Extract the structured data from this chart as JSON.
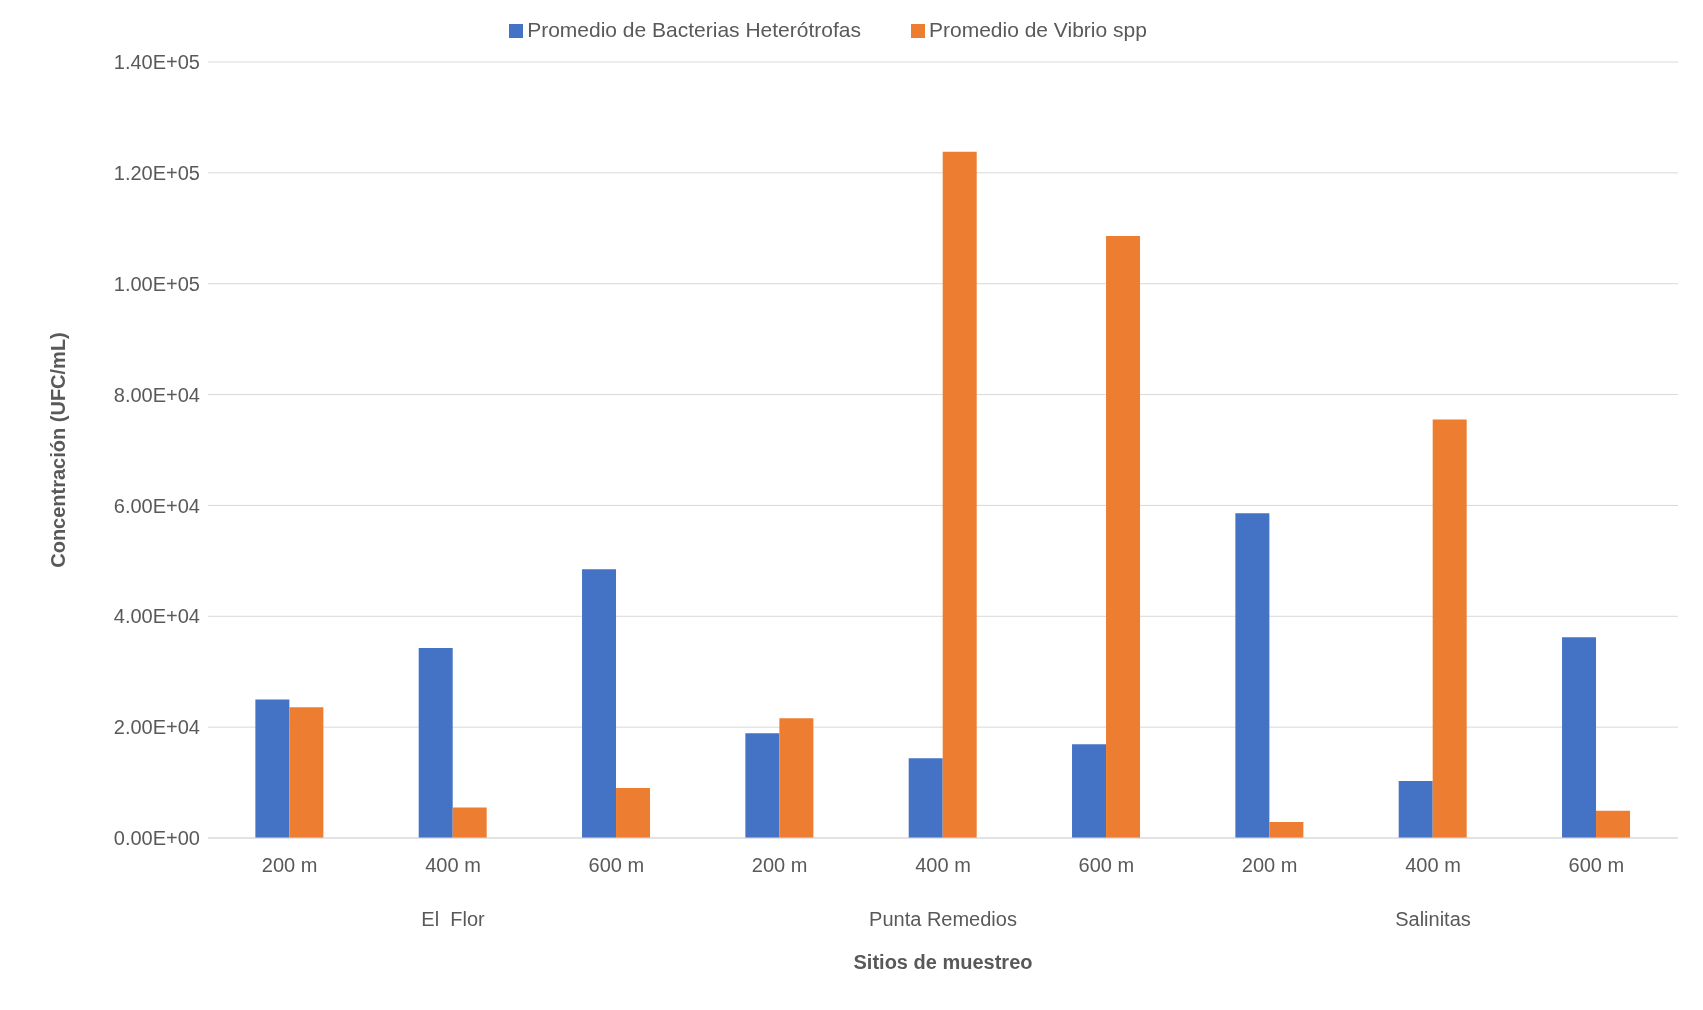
{
  "chart_data": {
    "type": "bar",
    "xlabel": "Sitios de muestreo",
    "ylabel": "Concentración (UFC/mL)",
    "categories": [
      "200 m",
      "400 m",
      "600 m",
      "200 m",
      "400 m",
      "600 m",
      "200 m",
      "400 m",
      "600 m"
    ],
    "series": [
      {
        "name": "Promedio de Bacterias Heterótrofas",
        "color": "#4472c4",
        "values": [
          25000,
          34300,
          48500,
          18900,
          14400,
          16900,
          58600,
          10300,
          36200
        ]
      },
      {
        "name": "Promedio de Vibrio spp",
        "color": "#ed7d31",
        "values": [
          23600,
          5500,
          9000,
          21600,
          123800,
          108600,
          2900,
          75500,
          4900
        ]
      }
    ],
    "ylim": [
      0,
      140000
    ],
    "yticks": [
      {
        "value": 0,
        "label": "0.00E+00"
      },
      {
        "value": 20000,
        "label": "2.00E+04"
      },
      {
        "value": 40000,
        "label": "4.00E+04"
      },
      {
        "value": 60000,
        "label": "6.00E+04"
      },
      {
        "value": 80000,
        "label": "8.00E+04"
      },
      {
        "value": 100000,
        "label": "1.00E+05"
      },
      {
        "value": 120000,
        "label": "1.20E+05"
      },
      {
        "value": 140000,
        "label": "1.40E+05"
      }
    ],
    "annotations": [
      "El  Flor",
      "Punta Remedios",
      "Salinitas"
    ],
    "grid": "y",
    "legend": "top"
  }
}
